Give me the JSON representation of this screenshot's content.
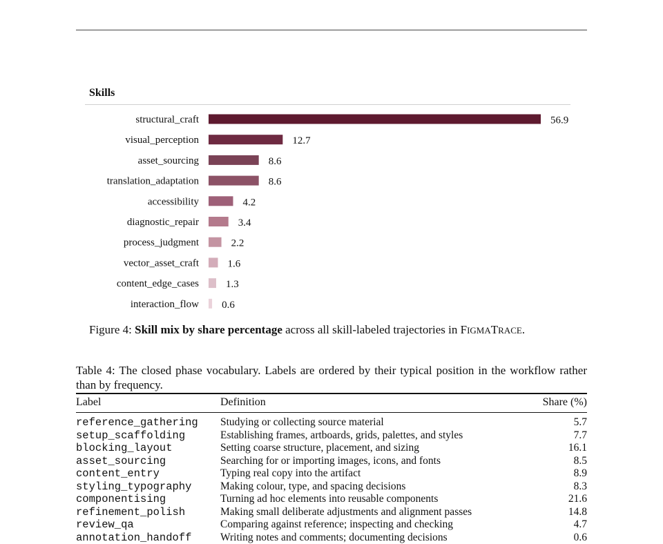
{
  "chart_data": {
    "type": "bar",
    "orientation": "horizontal",
    "title": "Skills",
    "categories": [
      "structural_craft",
      "visual_perception",
      "asset_sourcing",
      "translation_adaptation",
      "accessibility",
      "diagnostic_repair",
      "process_judgment",
      "vector_asset_craft",
      "content_edge_cases",
      "interaction_flow"
    ],
    "values": [
      56.9,
      12.7,
      8.6,
      8.6,
      4.2,
      3.4,
      2.2,
      1.6,
      1.3,
      0.6
    ],
    "value_labels": [
      "56.9",
      "12.7",
      "8.6",
      "8.6",
      "4.2",
      "3.4",
      "2.2",
      "1.6",
      "1.3",
      "0.6"
    ],
    "xlim": [
      0,
      56.9
    ],
    "grid": false,
    "colors": [
      "#5e1a2f",
      "#6e2a41",
      "#7a4256",
      "#8c5266",
      "#9e6078",
      "#b47a8c",
      "#c494a2",
      "#d3acb9",
      "#ddbfc9",
      "#ead2da"
    ]
  },
  "figure": {
    "label": "Figure 4:",
    "bold": "Skill mix by share percentage",
    "rest": " across all skill-labeled trajectories in ",
    "name_f": "F",
    "name_igma": "IGMA",
    "name_t": "T",
    "name_race": "RACE",
    "end": "."
  },
  "table": {
    "caption": "Table 4: The closed phase vocabulary. Labels are ordered by their typical position in the workflow rather than by frequency.",
    "headers": {
      "label": "Label",
      "definition": "Definition",
      "share": "Share (%)"
    },
    "rows": [
      {
        "label": "reference_gathering",
        "definition": "Studying or collecting source material",
        "share": "5.7"
      },
      {
        "label": "setup_scaffolding",
        "definition": "Establishing frames, artboards, grids, palettes, and styles",
        "share": "7.7"
      },
      {
        "label": "blocking_layout",
        "definition": "Setting coarse structure, placement, and sizing",
        "share": "16.1"
      },
      {
        "label": "asset_sourcing",
        "definition": "Searching for or importing images, icons, and fonts",
        "share": "8.5"
      },
      {
        "label": "content_entry",
        "definition": "Typing real copy into the artifact",
        "share": "8.9"
      },
      {
        "label": "styling_typography",
        "definition": "Making colour, type, and spacing decisions",
        "share": "8.3"
      },
      {
        "label": "componentising",
        "definition": "Turning ad hoc elements into reusable components",
        "share": "21.6"
      },
      {
        "label": "refinement_polish",
        "definition": "Making small deliberate adjustments and alignment passes",
        "share": "14.8"
      },
      {
        "label": "review_qa",
        "definition": "Comparing against reference; inspecting and checking",
        "share": "4.7"
      },
      {
        "label": "annotation_handoff",
        "definition": "Writing notes and comments; documenting decisions",
        "share": "0.6"
      }
    ]
  }
}
